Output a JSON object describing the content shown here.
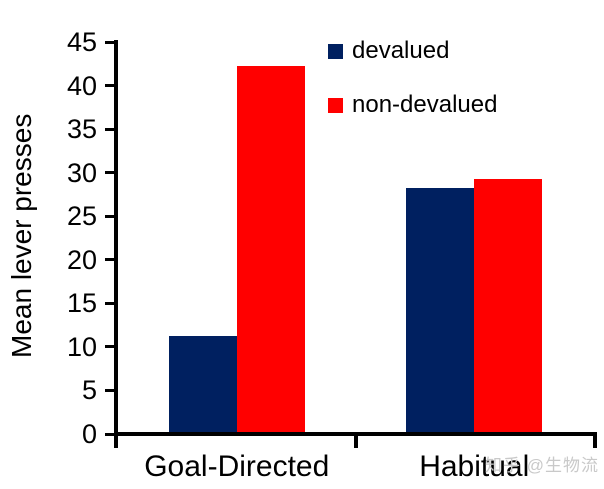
{
  "watermark": {
    "text": "知乎 @生物流",
    "color": "#c9c9c9"
  },
  "chart_data": {
    "type": "bar",
    "title": "",
    "xlabel": "",
    "ylabel": "Mean lever presses",
    "categories": [
      "Goal-Directed",
      "Habitual"
    ],
    "series": [
      {
        "name": "devalued",
        "color": "#002060",
        "values": [
          11,
          28
        ]
      },
      {
        "name": "non-devalued",
        "color": "#ff0000",
        "values": [
          42,
          29
        ]
      }
    ],
    "ylim": [
      0,
      45
    ],
    "yticks": [
      0,
      5,
      10,
      15,
      20,
      25,
      30,
      35,
      40,
      45
    ],
    "grid": false,
    "legend_position": "top-right",
    "axis_color": "#000000"
  }
}
